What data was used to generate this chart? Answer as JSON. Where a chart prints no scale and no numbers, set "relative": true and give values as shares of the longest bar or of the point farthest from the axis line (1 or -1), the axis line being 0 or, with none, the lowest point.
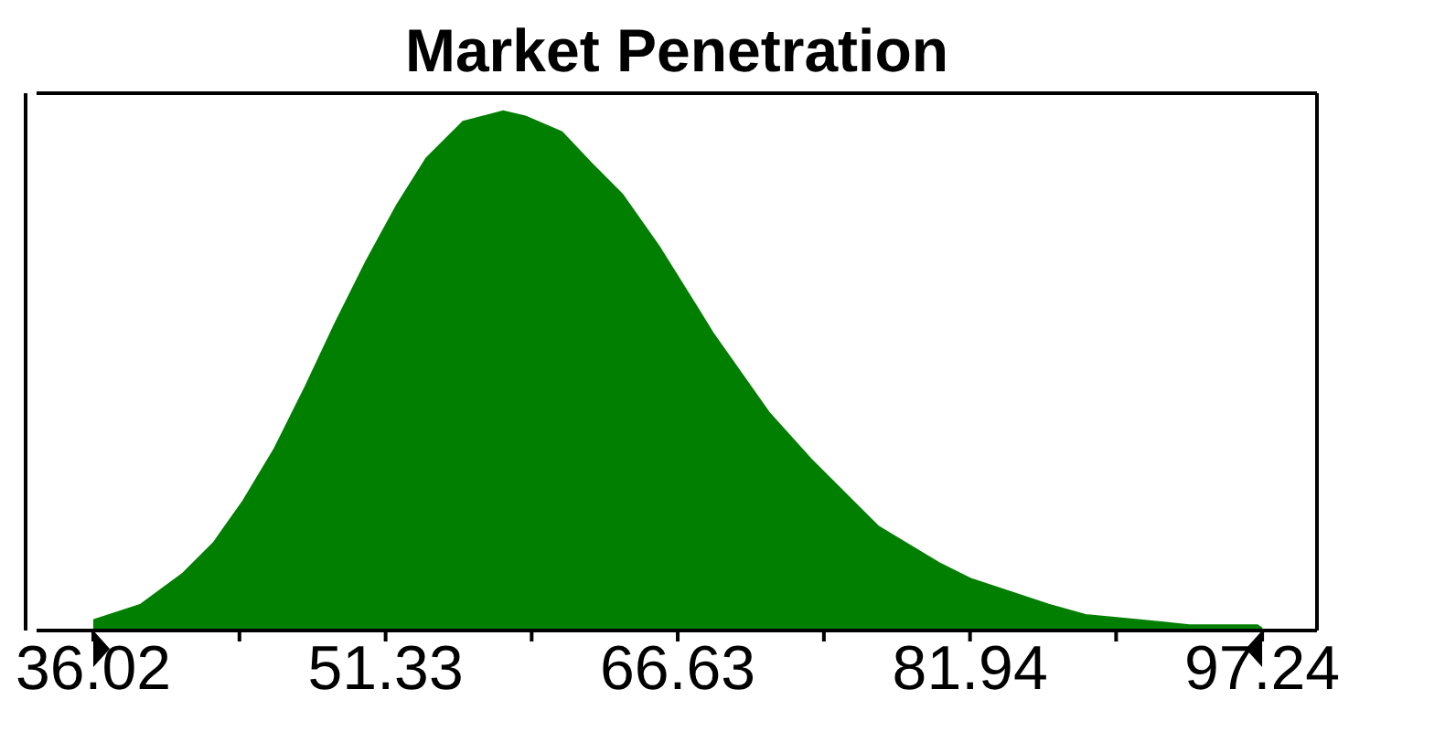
{
  "chart_data": {
    "type": "area",
    "title": "Market Penetration",
    "relative": true,
    "color": "#007f00",
    "x": [
      36.02,
      38.51,
      40.72,
      42.35,
      43.88,
      45.51,
      47.14,
      48.67,
      50.3,
      51.93,
      53.47,
      55.39,
      57.49,
      58.65,
      60.56,
      62.1,
      63.73,
      65.64,
      67.85,
      68.52,
      71.4,
      73.6,
      77.15,
      80.31,
      81.94,
      86.06,
      87.98,
      90.86,
      93.43,
      96.99,
      97.24
    ],
    "values": [
      0.02,
      0.05,
      0.11,
      0.17,
      0.25,
      0.35,
      0.47,
      0.59,
      0.71,
      0.82,
      0.91,
      0.98,
      1,
      0.99,
      0.96,
      0.9,
      0.84,
      0.74,
      0.61,
      0.57,
      0.42,
      0.33,
      0.2,
      0.13,
      0.1,
      0.05,
      0.03,
      0.02,
      0.01,
      0.01,
      0.004
    ],
    "xlim": [
      33.05,
      100.11
    ],
    "xticks": [
      36.02,
      {
        "value": 43.675,
        "label": null
      },
      51.33,
      {
        "value": 58.98,
        "label": null
      },
      66.63,
      {
        "value": 74.285,
        "label": null
      },
      81.94,
      {
        "value": 89.59,
        "label": null
      },
      97.24
    ],
    "line_style": "solid"
  }
}
